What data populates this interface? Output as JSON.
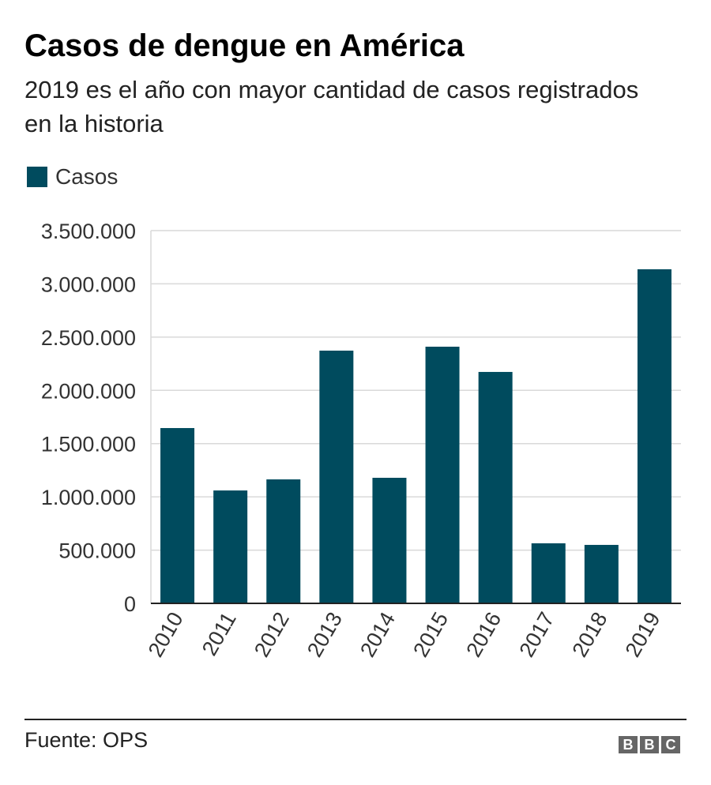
{
  "title": "Casos de dengue en América",
  "subtitle": "2019 es el año con mayor cantidad de casos registrados en la historia",
  "source": "Fuente: OPS",
  "logo": "BBC",
  "colors": {
    "bar": "#004b5e",
    "grid": "#d9d9d9",
    "axis": "#222222"
  },
  "chart_data": {
    "type": "bar",
    "categories": [
      "2010",
      "2011",
      "2012",
      "2013",
      "2014",
      "2015",
      "2016",
      "2017",
      "2018",
      "2019"
    ],
    "series": [
      {
        "name": "Casos",
        "values": [
          1646000,
          1060000,
          1164000,
          2373000,
          1179000,
          2410000,
          2173000,
          564000,
          549000,
          3137000
        ]
      }
    ],
    "yticks": [
      0,
      500000,
      1000000,
      1500000,
      2000000,
      2500000,
      3000000,
      3500000
    ],
    "ytick_labels": [
      "0",
      "500.000",
      "1.000.000",
      "1.500.000",
      "2.000.000",
      "2.500.000",
      "3.000.000",
      "3.500.000"
    ],
    "ylim": [
      0,
      3500000
    ],
    "grid": true,
    "legend": "top-left"
  }
}
